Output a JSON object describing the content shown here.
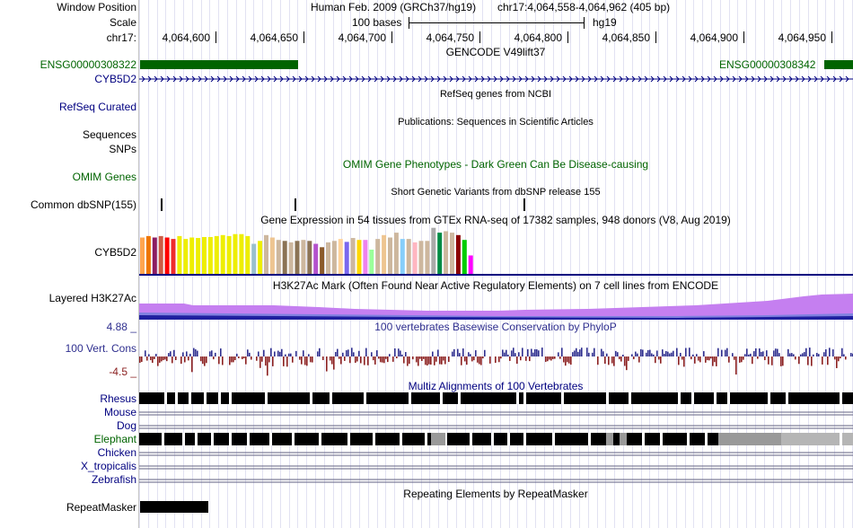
{
  "header": {
    "window_position_label": "Window Position",
    "scale_label": "Scale",
    "chrom_label": "chr17:",
    "assembly": "Human Feb. 2009 (GRCh37/hg19)",
    "position": "chr17:4,064,558-4,064,962 (405 bp)",
    "scale_text": "100 bases",
    "scale_db": "hg19",
    "ruler_ticks": [
      "4,064,600",
      "4,064,650",
      "4,064,700",
      "4,064,750",
      "4,064,800",
      "4,064,850",
      "4,064,900",
      "4,064,950"
    ]
  },
  "tracks": {
    "gencode": {
      "title": "GENCODE V49lift37",
      "gene_left": "ENSG00000308322",
      "gene_right": "ENSG00000308342",
      "cyb5d2_label": "CYB5D2",
      "color": "#006400"
    },
    "refseq": {
      "title": "RefSeq genes from NCBI",
      "label": "RefSeq Curated"
    },
    "publications": {
      "title": "Publications: Sequences in Scientific Articles",
      "label_1": "Sequences",
      "label_2": "SNPs"
    },
    "omim": {
      "title": "OMIM Gene Phenotypes - Dark Green Can Be Disease-causing",
      "label": "OMIM Genes"
    },
    "dbsnp": {
      "title": "Short Genetic Variants from dbSNP release 155",
      "label": "Common dbSNP(155)"
    },
    "gtex": {
      "title": "Gene Expression in 54 tissues from GTEx RNA-seq of 17382 samples, 948 donors (V8, Aug 2019)",
      "label": "CYB5D2"
    },
    "h3k27ac": {
      "title": "H3K27Ac Mark (Often Found Near Active Regulatory Elements) on 7 cell lines from ENCODE",
      "label": "Layered H3K27Ac"
    },
    "phylop": {
      "title": "100 vertebrates Basewise Conservation by PhyloP",
      "label": "100 Vert. Cons",
      "max_label": "4.88 _",
      "min_label": "-4.5 _"
    },
    "multiz": {
      "title": "Multiz Alignments of 100 Vertebrates",
      "species": [
        "Rhesus",
        "Mouse",
        "Dog",
        "Elephant",
        "Chicken",
        "X_tropicalis",
        "Zebrafish"
      ]
    },
    "repeatmasker": {
      "title": "Repeating Elements by RepeatMasker",
      "label": "RepeatMasker"
    }
  },
  "colors": {
    "navy": "#000080",
    "green": "#006400",
    "purple_light": "#c57ff0",
    "blue_dark": "#2020a0",
    "phylop_pos": "#2f2f8f",
    "phylop_neg": "#8b2020"
  },
  "chart_data": {
    "type": "bar",
    "title": "Gene Expression in 54 tissues from GTEx RNA-seq of 17382 samples, 948 donors (V8, Aug 2019)",
    "xlabel": "",
    "ylabel": "",
    "values": [
      0.75,
      0.78,
      0.75,
      0.78,
      0.75,
      0.72,
      0.78,
      0.72,
      0.75,
      0.74,
      0.76,
      0.76,
      0.78,
      0.8,
      0.78,
      0.82,
      0.82,
      0.78,
      0.62,
      0.68,
      0.8,
      0.75,
      0.7,
      0.68,
      0.65,
      0.68,
      0.7,
      0.68,
      0.62,
      0.55,
      0.65,
      0.68,
      0.72,
      0.66,
      0.74,
      0.7,
      0.7,
      0.5,
      0.72,
      0.8,
      0.75,
      0.85,
      0.72,
      0.72,
      0.65,
      0.68,
      0.68,
      0.95,
      0.85,
      0.88,
      0.85,
      0.8,
      0.7,
      0.38
    ],
    "colors": [
      "#ffa54f",
      "#ee7600",
      "#8b1c62",
      "#cd5b45",
      "#ff0000",
      "#ee2c2c",
      "#eeee00",
      "#eeee00",
      "#eeee00",
      "#eeee00",
      "#eeee00",
      "#eeee00",
      "#eeee00",
      "#eeee00",
      "#eeee00",
      "#eeee00",
      "#eeee00",
      "#eeee00",
      "#9ac0cd",
      "#eeee00",
      "#cdb79e",
      "#eec591",
      "#cdb79e",
      "#8b7355",
      "#cdb79e",
      "#8b7355",
      "#cdb79e",
      "#8b7355",
      "#b452cd",
      "#8b5a2b",
      "#cdb79e",
      "#cdb79e",
      "#ffd39b",
      "#7a67ee",
      "#cdb79e",
      "#ffd700",
      "#ee82ee",
      "#9aff9a",
      "#cdb79e",
      "#eec591",
      "#cdb79e",
      "#cdb79e",
      "#87cefa",
      "#cdb79e",
      "#ffb6c1",
      "#cdb79e",
      "#cdb79e",
      "#aaaaaa",
      "#008b45",
      "#cdb79e",
      "#cdb79e",
      "#8b0000",
      "#00cd00",
      "#ff00ff"
    ]
  }
}
